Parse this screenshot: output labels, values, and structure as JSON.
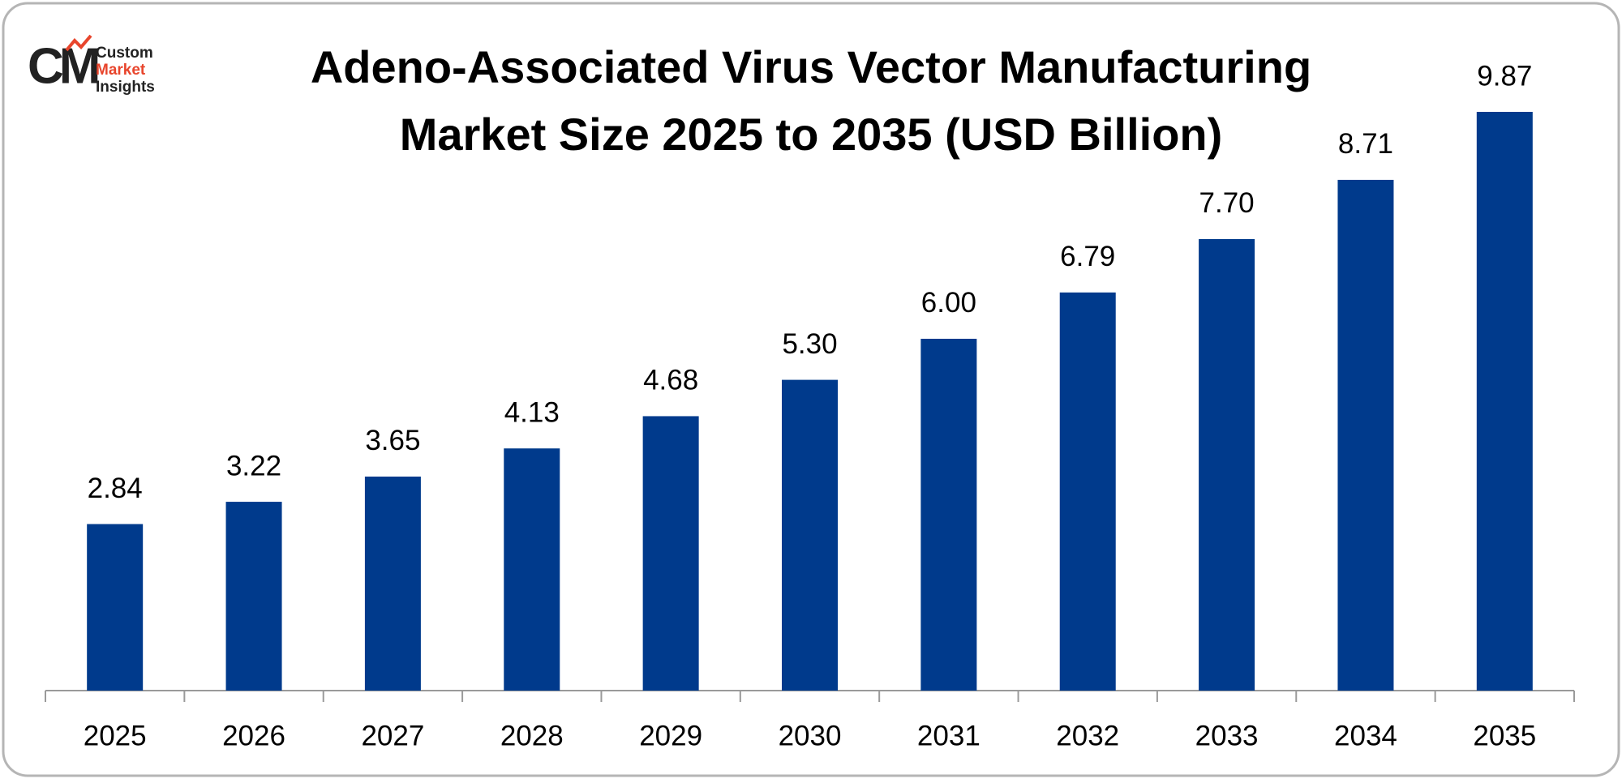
{
  "logo": {
    "mark": "CM",
    "lines": [
      "Custom",
      "Market",
      "Insights"
    ]
  },
  "chart_data": {
    "type": "bar",
    "title": [
      "Adeno-Associated Virus Vector Manufacturing",
      "Market Size 2025 to 2035 (USD Billion)"
    ],
    "categories": [
      "2025",
      "2026",
      "2027",
      "2028",
      "2029",
      "2030",
      "2031",
      "2032",
      "2033",
      "2034",
      "2035"
    ],
    "values": [
      2.84,
      3.22,
      3.65,
      4.13,
      4.68,
      5.3,
      6,
      6.79,
      7.7,
      8.71,
      9.87
    ],
    "value_labels": [
      "2.84",
      "3.22",
      "3.65",
      "4.13",
      "4.68",
      "5.30",
      "6.00",
      "6.79",
      "7.70",
      "8.71",
      "9.87"
    ],
    "color": "#003a8c"
  }
}
